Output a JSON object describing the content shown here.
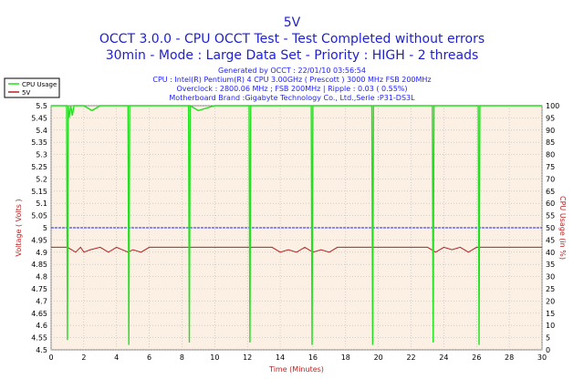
{
  "header": {
    "title": "5V",
    "subtitle_line1": "OCCT 3.0.0 - CPU OCCT Test - Test Completed without errors",
    "subtitle_line2": "30min - Mode : Large Data Set - Priority : HIGH - 2 threads",
    "info_lines": [
      "Generated by OCCT : 22/01/10 03:56:54",
      "CPU : Intel(R) Pentium(R) 4 CPU 3.00GHz ( Prescott ) 3000 MHz FSB 200MHz",
      "Overclock : 2800.06 MHz ; FSB 200MHz | Ripple : 0.03 ( 0.55%)",
      "Motherboard Brand :Gigabyte Technology Co., Ltd.,Serie :P31-DS3L"
    ]
  },
  "colors": {
    "plot_bg": "#fbf0e3",
    "grid": "#b9b9b9",
    "cpu_usage": "#22e01f",
    "voltage": "#b22222",
    "ripple_ref": "#1f2ad8"
  },
  "chart_data": {
    "type": "line",
    "xlabel": "Time (Minutes)",
    "ylabel_left": "Voltage ( Volts )",
    "ylabel_right": "CPU Usage (in %)",
    "xlim": [
      0,
      30
    ],
    "ylim_left": [
      4.5,
      5.5
    ],
    "ylim_right": [
      0,
      100
    ],
    "x_ticks": [
      "0",
      "2",
      "4",
      "6",
      "8",
      "10",
      "12",
      "14",
      "16",
      "18",
      "20",
      "22",
      "24",
      "26",
      "28",
      "30"
    ],
    "y_left_ticks": [
      "4.5",
      "4.55",
      "4.6",
      "4.65",
      "4.7",
      "4.75",
      "4.8",
      "4.85",
      "4.9",
      "4.95",
      "5",
      "5.05",
      "5.1",
      "5.15",
      "5.2",
      "5.25",
      "5.3",
      "5.35",
      "5.4",
      "5.45",
      "5.5"
    ],
    "y_right_ticks": [
      "0",
      "5",
      "10",
      "15",
      "20",
      "25",
      "30",
      "35",
      "40",
      "45",
      "50",
      "55",
      "60",
      "65",
      "70",
      "75",
      "80",
      "85",
      "90",
      "95",
      "100"
    ],
    "grid": true,
    "legend_position": "top-left",
    "series": [
      {
        "name": "CPU Usage",
        "axis": "right",
        "x": [
          0,
          0.95,
          1.0,
          1.05,
          1.1,
          1.2,
          1.3,
          1.4,
          2.0,
          2.5,
          3.0,
          4.0,
          4.7,
          4.75,
          4.8,
          5.2,
          6.0,
          7.0,
          8.4,
          8.45,
          8.5,
          9.0,
          10.0,
          11.0,
          12.1,
          12.15,
          12.2,
          12.7,
          14.0,
          15.0,
          15.9,
          15.95,
          16.0,
          16.5,
          17.0,
          18.0,
          19.0,
          19.6,
          19.65,
          19.7,
          20.2,
          21.0,
          22.0,
          23.3,
          23.35,
          23.4,
          24.0,
          25.0,
          26.1,
          26.15,
          26.2,
          26.6,
          27.5,
          28.5,
          30
        ],
        "values": [
          100,
          100,
          4,
          100,
          95,
          100,
          96,
          100,
          100,
          98,
          100,
          100,
          100,
          2,
          100,
          100,
          100,
          100,
          100,
          3,
          100,
          98,
          100,
          100,
          100,
          3,
          100,
          100,
          100,
          100,
          100,
          2,
          100,
          100,
          100,
          100,
          100,
          100,
          2,
          100,
          100,
          100,
          100,
          100,
          3,
          100,
          100,
          100,
          100,
          2,
          100,
          100,
          100,
          100,
          100
        ]
      },
      {
        "name": "5V",
        "axis": "left",
        "x": [
          0,
          1.0,
          1.5,
          1.8,
          2.0,
          2.4,
          3.0,
          3.5,
          4.0,
          4.7,
          5.0,
          5.5,
          6.0,
          7.0,
          8.0,
          9.0,
          10.0,
          11.0,
          12.0,
          13.0,
          13.5,
          14.0,
          14.5,
          15.0,
          15.5,
          16.0,
          16.5,
          17.0,
          17.5,
          18.0,
          19.0,
          20.0,
          21.0,
          22.0,
          23.0,
          23.5,
          24.0,
          24.5,
          25.0,
          25.5,
          26.0,
          27.0,
          28.0,
          29.0,
          30
        ],
        "values": [
          4.92,
          4.92,
          4.9,
          4.92,
          4.9,
          4.91,
          4.92,
          4.9,
          4.92,
          4.9,
          4.91,
          4.9,
          4.92,
          4.92,
          4.92,
          4.92,
          4.92,
          4.92,
          4.92,
          4.92,
          4.92,
          4.9,
          4.91,
          4.9,
          4.92,
          4.9,
          4.91,
          4.9,
          4.92,
          4.92,
          4.92,
          4.92,
          4.92,
          4.92,
          4.92,
          4.9,
          4.92,
          4.91,
          4.92,
          4.9,
          4.92,
          4.92,
          4.92,
          4.92,
          4.92
        ]
      },
      {
        "name": "",
        "axis": "left",
        "x": [
          0,
          30
        ],
        "values": [
          5.0,
          5.0
        ]
      }
    ]
  }
}
